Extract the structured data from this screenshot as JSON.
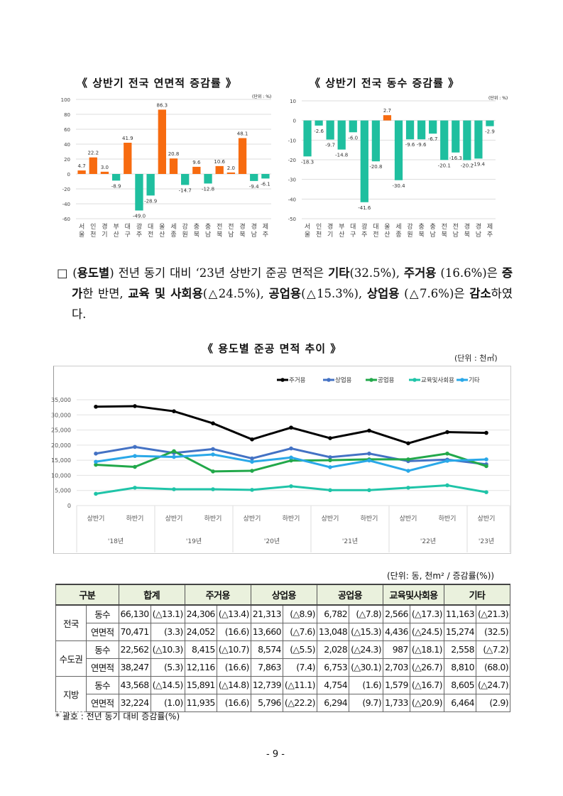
{
  "bar_chart_area": {
    "chart_data": {
      "type": "bar",
      "title": "《 상반기 전국 연면적 증감률 》",
      "unit": "(단위 : %)",
      "ylim": [
        -60,
        100
      ],
      "yticks": [
        100,
        80,
        60,
        40,
        20,
        0,
        -20,
        -40,
        -60
      ],
      "categories": [
        "서울",
        "인천",
        "경기",
        "부산",
        "대구",
        "광주",
        "대전",
        "울산",
        "세종",
        "강원",
        "충북",
        "충남",
        "전북",
        "전남",
        "경북",
        "경남",
        "제주"
      ],
      "values": [
        4.7,
        22.2,
        3.0,
        -8.9,
        41.9,
        -49.0,
        -28.9,
        86.3,
        20.8,
        -14.7,
        9.6,
        -12.8,
        10.6,
        2.0,
        48.1,
        -9.4,
        -6.1
      ]
    }
  },
  "bar_chart_count": {
    "chart_data": {
      "type": "bar",
      "title": "《 상반기 전국 동수 증감률 》",
      "unit": "(단위 : %)",
      "ylim": [
        -50,
        10
      ],
      "yticks": [
        10,
        0,
        -10,
        -20,
        -30,
        -40,
        -50
      ],
      "categories": [
        "서울",
        "인천",
        "경기",
        "부산",
        "대구",
        "광주",
        "대전",
        "울산",
        "세종",
        "강원",
        "충북",
        "충남",
        "전북",
        "전남",
        "경북",
        "경남",
        "제주"
      ],
      "values": [
        -18.3,
        -2.6,
        -9.7,
        -14.8,
        -6.0,
        -41.6,
        -20.8,
        2.7,
        -30.4,
        -9.6,
        -9.6,
        -6.7,
        -20.1,
        -16.3,
        -20.2,
        -19.4,
        -2.9
      ]
    }
  },
  "colors": {
    "positive": "#f76b10",
    "negative": "#1fbf9f"
  },
  "paragraph": {
    "bullet": "□",
    "segments": [
      {
        "t": "(",
        "b": false
      },
      {
        "t": "용도별",
        "b": true
      },
      {
        "t": ") 전년 동기 대비 ‘23년 상반기 준공 면적은 ",
        "b": false
      },
      {
        "t": "기타",
        "b": true
      },
      {
        "t": "(32.5%), ",
        "b": false
      },
      {
        "t": "주거용",
        "b": true
      },
      {
        "t": " (16.6%)은 ",
        "b": false
      },
      {
        "t": "증가",
        "b": true
      },
      {
        "t": "한 반면, ",
        "b": false
      },
      {
        "t": "교육 및 사회용",
        "b": true
      },
      {
        "t": "(△24.5%), ",
        "b": false
      },
      {
        "t": "공업용",
        "b": true
      },
      {
        "t": "(△15.3%), ",
        "b": false
      },
      {
        "t": "상업용",
        "b": true
      },
      {
        "t": " (△7.6%)은 ",
        "b": false
      },
      {
        "t": "감소",
        "b": true
      },
      {
        "t": "하였다.",
        "b": false
      }
    ]
  },
  "line_chart": {
    "title": "《 용도별 준공 면적 추이 》",
    "unit": "(단위 : 천㎡)",
    "chart_data": {
      "type": "line",
      "ylim": [
        0,
        35000
      ],
      "yticks": [
        "35,000",
        "30,000",
        "25,000",
        "20,000",
        "15,000",
        "10,000",
        "5,000",
        "0"
      ],
      "x": [
        "상반기",
        "하반기",
        "상반기",
        "하반기",
        "상반기",
        "하반기",
        "상반기",
        "하반기",
        "상반기",
        "하반기",
        "상반기"
      ],
      "years": [
        "'18년",
        "'19년",
        "'20년",
        "'21년",
        "'22년",
        "'23년"
      ],
      "series": [
        {
          "name": "주거용",
          "color": "#000000",
          "values": [
            32700,
            32900,
            31200,
            27200,
            21900,
            25800,
            22300,
            24800,
            20600,
            24300,
            24052
          ]
        },
        {
          "name": "상업용",
          "color": "#4472c4",
          "values": [
            17200,
            19400,
            17400,
            18700,
            15600,
            18900,
            16000,
            17200,
            14700,
            15200,
            13660
          ]
        },
        {
          "name": "공업용",
          "color": "#22a84a",
          "values": [
            13500,
            12800,
            18000,
            11300,
            11500,
            14900,
            15000,
            15300,
            15300,
            17200,
            13048
          ]
        },
        {
          "name": "교육및사회용",
          "color": "#1fc4a8",
          "values": [
            3900,
            5900,
            5400,
            5400,
            5200,
            6400,
            5100,
            5100,
            5900,
            6700,
            4436
          ]
        },
        {
          "name": "기타",
          "color": "#2aa8e8",
          "values": [
            14500,
            16400,
            16100,
            16900,
            14500,
            15900,
            12700,
            14900,
            11500,
            14800,
            15274
          ]
        }
      ]
    }
  },
  "table": {
    "unit": "(단위: 동, 천m² / 증감률(%))",
    "headers": [
      "구분",
      "합계",
      "주거용",
      "상업용",
      "공업용",
      "교육및사회용",
      "기타"
    ],
    "regions": [
      {
        "name": "전국",
        "rows": [
          {
            "label": "동수",
            "cells": [
              "66,130",
              "(△13.1)",
              "24,306",
              "(△13.4)",
              "21,313",
              "(△8.9)",
              "6,782",
              "(△7.8)",
              "2,566",
              "(△17.3)",
              "11,163",
              "(△21.3)"
            ]
          },
          {
            "label": "연면적",
            "cells": [
              "70,471",
              "(3.3)",
              "24,052",
              "(16.6)",
              "13,660",
              "(△7.6)",
              "13,048",
              "(△15.3)",
              "4,436",
              "(△24.5)",
              "15,274",
              "(32.5)"
            ]
          }
        ]
      },
      {
        "name": "수도권",
        "rows": [
          {
            "label": "동수",
            "cells": [
              "22,562",
              "(△10.3)",
              "8,415",
              "(△10.7)",
              "8,574",
              "(△5.5)",
              "2,028",
              "(△24.3)",
              "987",
              "(△18.1)",
              "2,558",
              "(△7.2)"
            ]
          },
          {
            "label": "연면적",
            "cells": [
              "38,247",
              "(5.3)",
              "12,116",
              "(16.6)",
              "7,863",
              "(7.4)",
              "6,753",
              "(△30.1)",
              "2,703",
              "(△26.7)",
              "8,810",
              "(68.0)"
            ]
          }
        ]
      },
      {
        "name": "지방",
        "rows": [
          {
            "label": "동수",
            "cells": [
              "43,568",
              "(△14.5)",
              "15,891",
              "(△14.8)",
              "12,739",
              "(△11.1)",
              "4,754",
              "(1.6)",
              "1,579",
              "(△16.7)",
              "8,605",
              "(△24.7)"
            ]
          },
          {
            "label": "연면적",
            "cells": [
              "32,224",
              "(1.0)",
              "11,935",
              "(16.6)",
              "5,796",
              "(△22.2)",
              "6,294",
              "(9.7)",
              "1,733",
              "(△20.9)",
              "6,464",
              "(2.9)"
            ]
          }
        ]
      }
    ],
    "footnote": "* 괄호 : 전년 동기 대비 증감률(%)"
  },
  "page_number": "- 9 -"
}
